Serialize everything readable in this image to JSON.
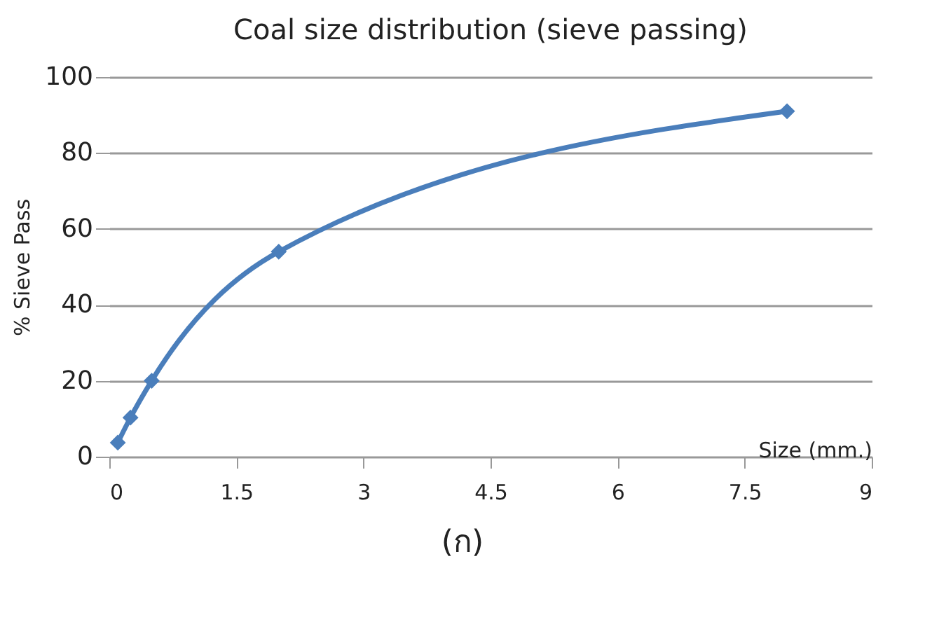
{
  "chart_data": {
    "type": "line",
    "title": "Coal size distribution (sieve passing)",
    "xlabel": "Size (mm.)",
    "ylabel": "% Sieve Pass",
    "x": [
      0.1,
      0.25,
      0.5,
      2,
      8
    ],
    "series": [
      {
        "color": "#4a7ebb",
        "values": [
          3.7,
          10.3,
          20,
          54,
          91
        ]
      }
    ],
    "xlim": [
      0,
      9
    ],
    "xticks": [
      0,
      1.5,
      3,
      4.5,
      6,
      7.5,
      9
    ],
    "ylim": [
      0,
      100
    ],
    "yticks": [
      0,
      20,
      40,
      60,
      80,
      100
    ],
    "grid": "y",
    "marker": "diamond",
    "line_style": "solid",
    "annotations": [
      "(ก)"
    ]
  }
}
